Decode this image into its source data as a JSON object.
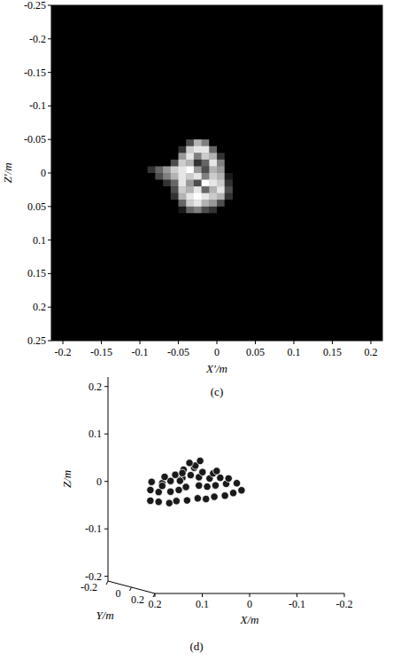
{
  "chart_data": [
    {
      "type": "heatmap",
      "label": "(c)",
      "xlabel": "X′/m",
      "ylabel": "Z′/m",
      "xlim": [
        -0.215,
        0.215
      ],
      "xticks": [
        -0.2,
        -0.15,
        -0.1,
        -0.05,
        0,
        0.05,
        0.1,
        0.15,
        0.2
      ],
      "ylim": [
        0.25,
        -0.25
      ],
      "yticks": [
        -0.25,
        -0.2,
        -0.15,
        -0.1,
        -0.05,
        0,
        0.05,
        0.1,
        0.15,
        0.2,
        0.25
      ],
      "xbins": [
        -0.09,
        -0.08,
        -0.07,
        -0.06,
        -0.05,
        -0.04,
        -0.03,
        -0.02,
        -0.01,
        0,
        0.01,
        0.02
      ],
      "ybins": [
        -0.06,
        -0.05,
        -0.04,
        -0.03,
        -0.02,
        -0.01,
        0,
        0.01,
        0.02,
        0.03,
        0.04,
        0.05,
        0.06,
        0.07
      ],
      "color_range": [
        0,
        1
      ],
      "cells": [
        [
          0,
          0,
          0,
          0,
          0,
          0,
          0,
          0,
          0,
          0,
          0
        ],
        [
          0,
          0,
          0,
          0,
          0,
          0.3,
          0.7,
          0.5,
          0,
          0,
          0
        ],
        [
          0,
          0,
          0,
          0,
          0.2,
          0.8,
          0.9,
          0.9,
          0.4,
          0,
          0
        ],
        [
          0,
          0,
          0,
          0,
          0.6,
          0.9,
          0.5,
          0.8,
          0.7,
          0.2,
          0
        ],
        [
          0,
          0,
          0,
          0.3,
          0.8,
          0.7,
          0.2,
          0.4,
          0.9,
          0.5,
          0
        ],
        [
          0.2,
          0.4,
          0.6,
          0.8,
          0.9,
          1,
          0.6,
          0.3,
          0.7,
          0.6,
          0
        ],
        [
          0,
          0.3,
          0.5,
          0.7,
          0.9,
          0.8,
          0.9,
          0.5,
          0.8,
          0.7,
          0.1
        ],
        [
          0,
          0,
          0.2,
          0.4,
          0.9,
          0.6,
          0.3,
          1,
          0.9,
          0.8,
          0.2
        ],
        [
          0,
          0,
          0,
          0.3,
          0.8,
          0.7,
          0.9,
          0.4,
          0.7,
          0.9,
          0.3
        ],
        [
          0,
          0,
          0,
          0.2,
          0.7,
          0.9,
          1,
          0.9,
          0.8,
          0.7,
          0.2
        ],
        [
          0,
          0,
          0,
          0,
          0.4,
          0.8,
          0.9,
          0.7,
          0.6,
          0.3,
          0
        ],
        [
          0,
          0,
          0,
          0,
          0.1,
          0.4,
          0.5,
          0.3,
          0.2,
          0,
          0
        ],
        [
          0,
          0,
          0,
          0,
          0,
          0,
          0,
          0,
          0,
          0,
          0
        ]
      ]
    },
    {
      "type": "scatter3d",
      "label": "(d)",
      "xlabel": "X/m",
      "ylabel": "Y/m",
      "zlabel": "Z/m",
      "xlim": [
        0.2,
        -0.2
      ],
      "xticks": [
        0.2,
        0.1,
        0,
        -0.1,
        -0.2
      ],
      "ylim": [
        -0.2,
        0.2
      ],
      "yticks": [
        -0.2,
        0,
        0.2
      ],
      "zlim": [
        -0.21,
        0.22
      ],
      "zticks": [
        -0.2,
        -0.1,
        0,
        0.1,
        0.2
      ],
      "marker": "circle",
      "color": "#1a1a1a",
      "x": [
        0.17,
        0.15,
        0.13,
        0.11,
        0.09,
        0.07,
        0.05,
        0.03,
        0.01,
        -0.01,
        -0.03,
        0.16,
        0.14,
        0.12,
        0.1,
        0.08,
        0.06,
        0.04,
        0.02,
        0.0,
        -0.02,
        0.15,
        0.13,
        0.11,
        0.09,
        0.07,
        0.05,
        0.03,
        0.01,
        -0.01,
        0.12,
        0.1,
        0.08,
        0.06,
        0.04,
        0.02,
        0.14,
        0.1,
        0.06,
        0.02,
        0.09,
        0.07,
        0.05
      ],
      "y": [
        0.04,
        0.03,
        0.04,
        0.02,
        0.03,
        0.04,
        0.03,
        0.02,
        0.03,
        0.02,
        0.01,
        0,
        -0.01,
        0.01,
        0,
        -0.02,
        0.01,
        0,
        -0.01,
        0,
        0.01,
        -0.03,
        -0.02,
        -0.03,
        -0.01,
        -0.02,
        -0.03,
        -0.02,
        -0.01,
        -0.02,
        -0.04,
        -0.03,
        -0.04,
        -0.03,
        -0.04,
        -0.03,
        0.02,
        0.01,
        -0.02,
        0,
        -0.01,
        -0.03,
        -0.02
      ],
      "z": [
        -0.025,
        -0.028,
        -0.03,
        -0.027,
        -0.025,
        -0.02,
        -0.022,
        -0.018,
        -0.015,
        -0.01,
        -0.005,
        -0.005,
        -0.01,
        -0.008,
        -0.005,
        0,
        0.005,
        0.002,
        0.004,
        0.008,
        0.01,
        0.01,
        0.008,
        0.012,
        0.02,
        0.025,
        0.02,
        0.018,
        0.02,
        0.018,
        0.02,
        0.025,
        0.035,
        0.04,
        0.03,
        0.028,
        0.005,
        0.015,
        0.045,
        0.035,
        0.03,
        0.05,
        0.055
      ]
    }
  ]
}
